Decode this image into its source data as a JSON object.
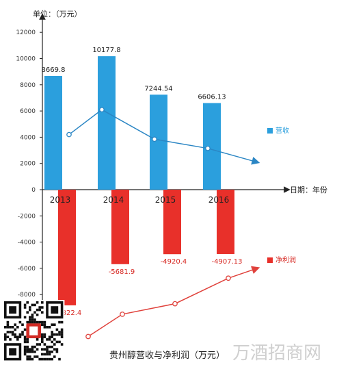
{
  "chart_data": {
    "type": "bar",
    "title": "贵州醇营收与净利润（万元）",
    "ylabel": "单位：（万元）",
    "xlabel": "日期：年份",
    "categories": [
      "2013",
      "2014",
      "2015",
      "2016"
    ],
    "ylim": [
      -8000,
      12000
    ],
    "yticks": [
      -8000,
      -6000,
      -4000,
      -2000,
      0,
      2000,
      4000,
      6000,
      8000,
      10000,
      12000
    ],
    "series": [
      {
        "name": "营收",
        "color": "#2b9fdd",
        "values": [
          8669.8,
          10177.8,
          7244.54,
          6606.13
        ],
        "labels": [
          "8669.8",
          "10177.8",
          "7244.54",
          "6606.13"
        ]
      },
      {
        "name": "净利润",
        "color": "#e8302a",
        "values": [
          -8822.4,
          -5681.9,
          -4920.4,
          -4907.13
        ],
        "labels": [
          "-8822.4",
          "-5681.9",
          "-4920.4",
          "-4907.13"
        ]
      }
    ],
    "trend_lines": [
      {
        "series": "营收",
        "color": "#2b86c4",
        "values": [
          4200,
          6100,
          3850,
          3150
        ],
        "end_value": 2100
      },
      {
        "series": "净利润",
        "color": "#e0423c",
        "values": [
          -11200,
          -9500,
          -8700,
          -6750
        ],
        "end_value": -6000
      }
    ],
    "grid": false,
    "legend_position": "right"
  },
  "watermark": "万酒招商网"
}
